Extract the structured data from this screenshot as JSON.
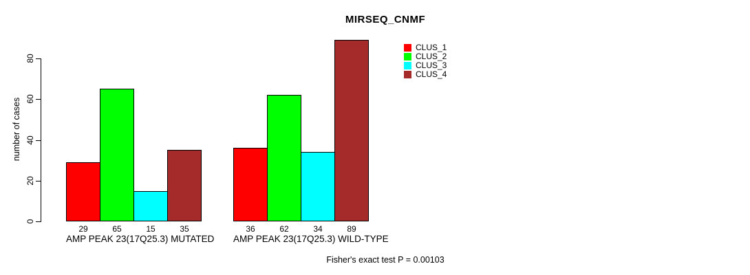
{
  "title": "MIRSEQ_CNMF",
  "chart_data": {
    "type": "bar",
    "title": "MIRSEQ_CNMF",
    "xlabel": "",
    "ylabel": "number of cases",
    "ylim": [
      0,
      90
    ],
    "yticks": [
      0,
      20,
      40,
      60,
      80
    ],
    "grid": false,
    "legend_position": "top-right",
    "categories": [
      "AMP PEAK 23(17Q25.3) MUTATED",
      "AMP PEAK 23(17Q25.3) WILD-TYPE"
    ],
    "series": [
      {
        "name": "CLUS_1",
        "color": "#FF0000",
        "values": [
          29,
          36
        ]
      },
      {
        "name": "CLUS_2",
        "color": "#00FF00",
        "values": [
          65,
          62
        ]
      },
      {
        "name": "CLUS_3",
        "color": "#00FFFF",
        "values": [
          15,
          34
        ]
      },
      {
        "name": "CLUS_4",
        "color": "#A52A2A",
        "values": [
          35,
          89
        ]
      }
    ],
    "value_labels_shown": true
  },
  "footer": {
    "note": "Fisher's exact test P = 0.00103"
  }
}
